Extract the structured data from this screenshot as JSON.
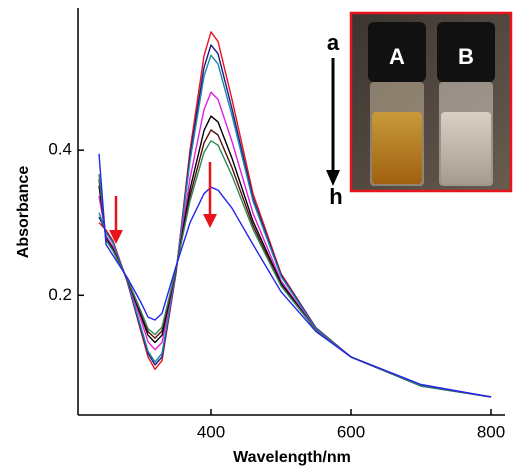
{
  "chart_data": {
    "type": "line",
    "x_label": "Wavelength/nm",
    "y_label": "Absorbance",
    "annotations": [
      "a",
      "h",
      "A",
      "B"
    ],
    "x": [
      240,
      250,
      260,
      280,
      300,
      310,
      320,
      330,
      350,
      370,
      390,
      400,
      410,
      430,
      460,
      500,
      550,
      600,
      700,
      800
    ],
    "series": [
      {
        "color": "#e8141c",
        "values": [
          0.3,
          0.29,
          0.275,
          0.22,
          0.15,
          0.115,
          0.098,
          0.11,
          0.23,
          0.4,
          0.53,
          0.563,
          0.55,
          0.47,
          0.34,
          0.23,
          0.155,
          0.115,
          0.075,
          0.06
        ]
      },
      {
        "color": "#1c1c8a",
        "values": [
          0.308,
          0.288,
          0.273,
          0.22,
          0.153,
          0.12,
          0.104,
          0.115,
          0.231,
          0.392,
          0.514,
          0.545,
          0.533,
          0.457,
          0.334,
          0.228,
          0.155,
          0.115,
          0.075,
          0.06
        ]
      },
      {
        "color": "#1b87a8",
        "values": [
          0.314,
          0.287,
          0.272,
          0.221,
          0.156,
          0.123,
          0.108,
          0.12,
          0.232,
          0.385,
          0.502,
          0.531,
          0.519,
          0.448,
          0.33,
          0.226,
          0.154,
          0.115,
          0.075,
          0.06
        ]
      },
      {
        "color": "#e020e0",
        "values": [
          0.337,
          0.282,
          0.267,
          0.222,
          0.166,
          0.136,
          0.125,
          0.135,
          0.234,
          0.361,
          0.456,
          0.48,
          0.47,
          0.412,
          0.313,
          0.22,
          0.153,
          0.115,
          0.076,
          0.06
        ]
      },
      {
        "color": "#000000",
        "values": [
          0.351,
          0.279,
          0.264,
          0.223,
          0.172,
          0.145,
          0.135,
          0.145,
          0.235,
          0.346,
          0.427,
          0.447,
          0.439,
          0.389,
          0.302,
          0.217,
          0.152,
          0.115,
          0.076,
          0.06
        ]
      },
      {
        "color": "#5a0c0c",
        "values": [
          0.36,
          0.277,
          0.262,
          0.223,
          0.175,
          0.15,
          0.141,
          0.151,
          0.236,
          0.337,
          0.41,
          0.428,
          0.421,
          0.376,
          0.296,
          0.214,
          0.152,
          0.115,
          0.076,
          0.06
        ]
      },
      {
        "color": "#2e8b57",
        "values": [
          0.367,
          0.276,
          0.261,
          0.224,
          0.178,
          0.154,
          0.146,
          0.156,
          0.237,
          0.33,
          0.397,
          0.413,
          0.407,
          0.365,
          0.291,
          0.213,
          0.152,
          0.115,
          0.076,
          0.06
        ]
      },
      {
        "color": "#2424ee",
        "values": [
          0.395,
          0.27,
          0.255,
          0.225,
          0.19,
          0.17,
          0.166,
          0.175,
          0.24,
          0.3,
          0.34,
          0.349,
          0.345,
          0.32,
          0.27,
          0.205,
          0.15,
          0.115,
          0.077,
          0.06
        ]
      }
    ],
    "xlim": [
      210,
      820
    ],
    "ylim": [
      0.035,
      0.596
    ],
    "xticks": [
      400,
      600,
      800
    ],
    "yticks": [
      0.2,
      0.4
    ]
  }
}
